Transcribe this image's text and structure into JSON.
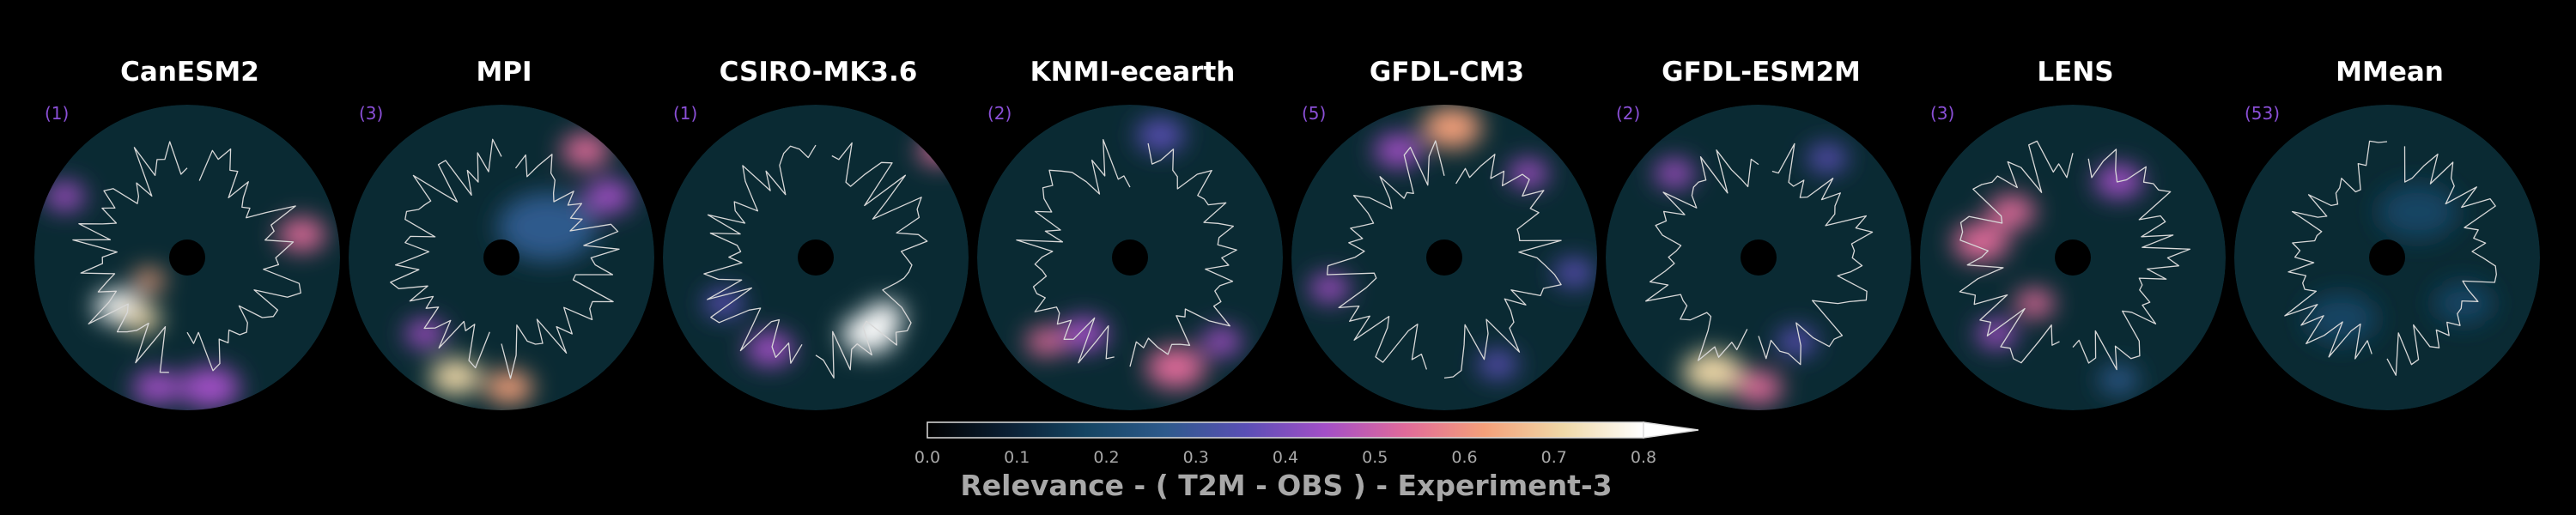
{
  "chart_data": {
    "type": "heatmap",
    "projection": "north-polar-stereographic",
    "panels": [
      {
        "title": "CanESM2",
        "count": "(1)",
        "hotspots": [
          [
            -0.45,
            0.32,
            0.12,
            0.85
          ],
          [
            -0.3,
            0.4,
            0.1,
            0.7
          ],
          [
            -0.25,
            0.15,
            0.08,
            0.65
          ],
          [
            0.75,
            -0.15,
            0.12,
            0.55
          ],
          [
            -0.8,
            -0.4,
            0.1,
            0.45
          ],
          [
            0.15,
            0.85,
            0.15,
            0.45
          ],
          [
            -0.2,
            0.85,
            0.12,
            0.4
          ]
        ]
      },
      {
        "title": "MPI",
        "count": "(3)",
        "hotspots": [
          [
            -0.3,
            0.78,
            0.13,
            0.7
          ],
          [
            0.05,
            0.85,
            0.12,
            0.65
          ],
          [
            -0.5,
            0.5,
            0.1,
            0.45
          ],
          [
            0.55,
            -0.7,
            0.12,
            0.5
          ],
          [
            0.7,
            -0.4,
            0.12,
            0.4
          ],
          [
            0.3,
            -0.2,
            0.25,
            0.25
          ]
        ]
      },
      {
        "title": "CSIRO-MK3.6",
        "count": "(1)",
        "hotspots": [
          [
            0.35,
            0.5,
            0.14,
            0.95
          ],
          [
            0.45,
            0.38,
            0.1,
            0.8
          ],
          [
            -0.3,
            0.6,
            0.12,
            0.45
          ],
          [
            0.8,
            -0.7,
            0.1,
            0.5
          ],
          [
            -0.6,
            0.3,
            0.1,
            0.35
          ]
        ]
      },
      {
        "title": "KNMI-ecearth",
        "count": "(2)",
        "hotspots": [
          [
            0.3,
            0.72,
            0.15,
            0.55
          ],
          [
            -0.3,
            0.5,
            0.12,
            0.45
          ],
          [
            -0.55,
            0.55,
            0.1,
            0.5
          ],
          [
            0.6,
            0.55,
            0.1,
            0.4
          ],
          [
            0.2,
            -0.8,
            0.12,
            0.35
          ]
        ]
      },
      {
        "title": "GFDL-CM3",
        "count": "(5)",
        "hotspots": [
          [
            0.05,
            -0.85,
            0.15,
            0.6
          ],
          [
            -0.3,
            -0.7,
            0.12,
            0.45
          ],
          [
            0.55,
            -0.55,
            0.1,
            0.45
          ],
          [
            -0.75,
            0.2,
            0.1,
            0.4
          ],
          [
            0.35,
            0.7,
            0.1,
            0.35
          ],
          [
            0.85,
            0.1,
            0.1,
            0.35
          ]
        ]
      },
      {
        "title": "GFDL-ESM2M",
        "count": "(2)",
        "hotspots": [
          [
            -0.3,
            0.75,
            0.15,
            0.75
          ],
          [
            0.0,
            0.85,
            0.12,
            0.55
          ],
          [
            -0.55,
            -0.55,
            0.1,
            0.4
          ],
          [
            0.45,
            -0.65,
            0.1,
            0.35
          ],
          [
            0.25,
            0.55,
            0.1,
            0.35
          ]
        ]
      },
      {
        "title": "LENS",
        "count": "(3)",
        "hotspots": [
          [
            -0.6,
            -0.1,
            0.14,
            0.55
          ],
          [
            -0.4,
            -0.3,
            0.12,
            0.5
          ],
          [
            -0.25,
            0.3,
            0.1,
            0.55
          ],
          [
            0.3,
            -0.5,
            0.12,
            0.45
          ],
          [
            -0.5,
            0.5,
            0.1,
            0.4
          ],
          [
            0.3,
            0.8,
            0.1,
            0.3
          ]
        ]
      },
      {
        "title": "MMean",
        "count": "(53)",
        "hotspots": [
          [
            -0.3,
            0.4,
            0.18,
            0.2
          ],
          [
            0.2,
            -0.3,
            0.2,
            0.15
          ],
          [
            0.5,
            0.3,
            0.15,
            0.15
          ]
        ]
      }
    ],
    "colorbar": {
      "label": "Relevance - ( T2M - OBS ) - Experiment-3",
      "min": 0.0,
      "max": 0.8,
      "extend": "max",
      "ticks": [
        "0.0",
        "0.1",
        "0.2",
        "0.3",
        "0.4",
        "0.5",
        "0.6",
        "0.7",
        "0.8"
      ],
      "colormap_stops": [
        "#000000",
        "#0b1f33",
        "#154563",
        "#2e5a8c",
        "#5a4fb5",
        "#a34fc7",
        "#e06a9a",
        "#f4a07a",
        "#f0d9a8",
        "#ffffff"
      ]
    }
  }
}
